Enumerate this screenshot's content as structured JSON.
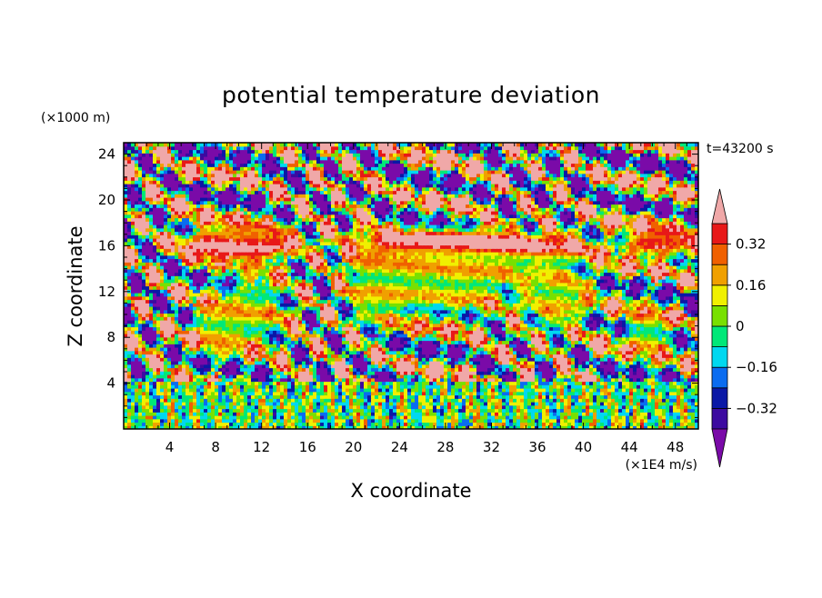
{
  "chart_data": {
    "type": "heatmap",
    "title": "potential temperature deviation",
    "xlabel": "X coordinate",
    "ylabel": "Z coordinate",
    "x_unit": "(×1E4 m/s)",
    "y_unit": "(×1000 m)",
    "time_label": "t=43200 s",
    "xlim": [
      0,
      50
    ],
    "ylim": [
      0,
      25
    ],
    "x_ticks": [
      4,
      8,
      12,
      16,
      20,
      24,
      28,
      32,
      36,
      40,
      44,
      48
    ],
    "y_ticks": [
      4,
      8,
      12,
      16,
      20,
      24
    ],
    "colorbar": {
      "levels": [
        -0.4,
        -0.32,
        -0.24,
        -0.16,
        -0.08,
        0,
        0.08,
        0.16,
        0.24,
        0.32,
        0.4
      ],
      "labels": [
        "-0.32",
        "-0.16",
        "0",
        "0.16",
        "0.32"
      ],
      "label_values": [
        -0.32,
        -0.16,
        0,
        0.16,
        0.32
      ],
      "colors": [
        "#7a0aa8",
        "#3c0aa0",
        "#0a18a6",
        "#0a6cf0",
        "#00d8f0",
        "#00e878",
        "#78e000",
        "#f0f000",
        "#f0a000",
        "#f06000",
        "#e81818",
        "#f0a8a8"
      ],
      "extend": "both"
    }
  }
}
